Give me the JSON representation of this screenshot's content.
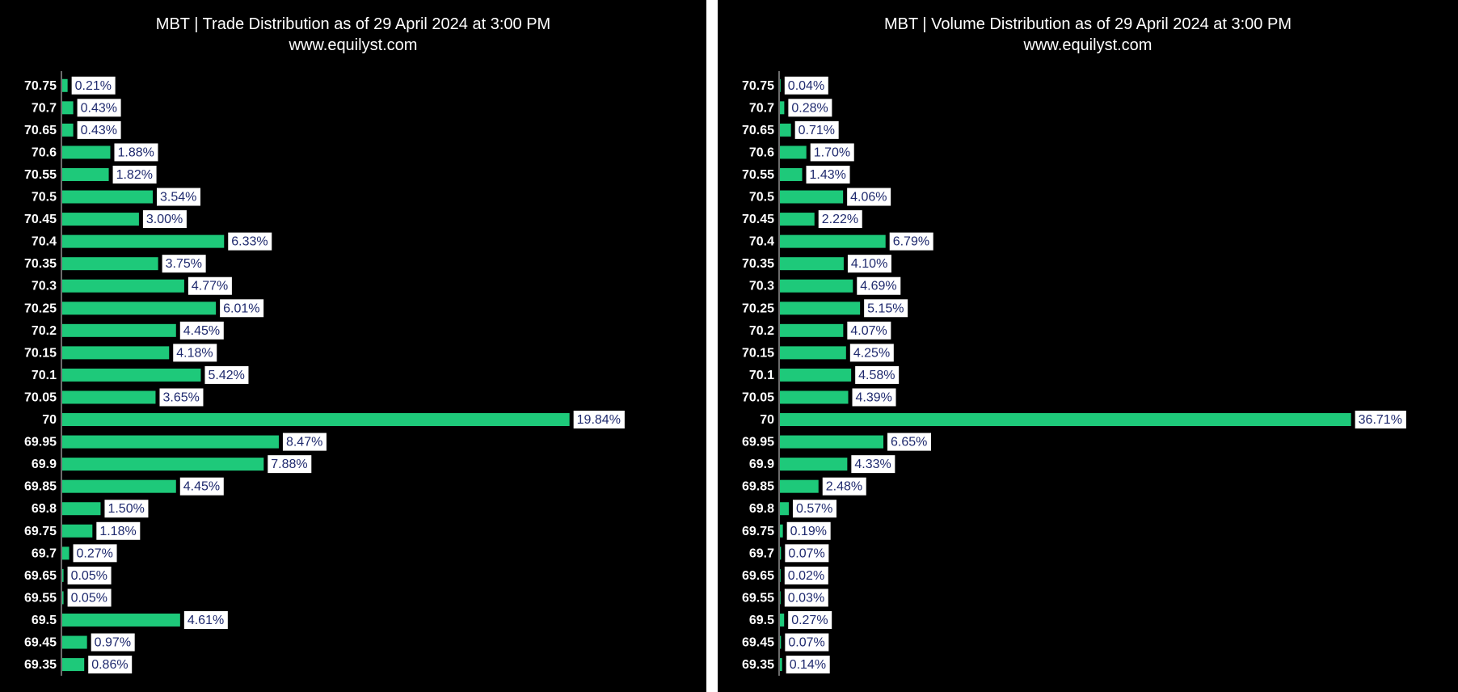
{
  "chart_data": [
    {
      "type": "bar",
      "orientation": "horizontal",
      "title": "MBT | Trade Distribution as of 29 April 2024 at 3:00 PM",
      "subtitle": "www.equilyst.com",
      "categories": [
        "70.75",
        "70.7",
        "70.65",
        "70.6",
        "70.55",
        "70.5",
        "70.45",
        "70.4",
        "70.35",
        "70.3",
        "70.25",
        "70.2",
        "70.15",
        "70.1",
        "70.05",
        "70",
        "69.95",
        "69.9",
        "69.85",
        "69.8",
        "69.75",
        "69.7",
        "69.65",
        "69.55",
        "69.5",
        "69.45",
        "69.35"
      ],
      "values": [
        0.21,
        0.43,
        0.43,
        1.88,
        1.82,
        3.54,
        3.0,
        6.33,
        3.75,
        4.77,
        6.01,
        4.45,
        4.18,
        5.42,
        3.65,
        19.84,
        8.47,
        7.88,
        4.45,
        1.5,
        1.18,
        0.27,
        0.05,
        0.05,
        4.61,
        0.97,
        0.86
      ],
      "value_labels": [
        "0.21%",
        "0.43%",
        "0.43%",
        "1.88%",
        "1.82%",
        "3.54%",
        "3.00%",
        "6.33%",
        "3.75%",
        "4.77%",
        "6.01%",
        "4.45%",
        "4.18%",
        "5.42%",
        "3.65%",
        "19.84%",
        "8.47%",
        "7.88%",
        "4.45%",
        "1.50%",
        "1.18%",
        "0.27%",
        "0.05%",
        "0.05%",
        "4.61%",
        "0.97%",
        "0.86%"
      ],
      "xlim": [
        0,
        22
      ],
      "grid": false,
      "bar_color": "#1ec97a",
      "background": "#000000",
      "label_box_color": "#ffffff",
      "label_text_color": "#1f2a6e"
    },
    {
      "type": "bar",
      "orientation": "horizontal",
      "title": "MBT | Volume Distribution as of 29 April 2024 at 3:00 PM",
      "subtitle": "www.equilyst.com",
      "categories": [
        "70.75",
        "70.7",
        "70.65",
        "70.6",
        "70.55",
        "70.5",
        "70.45",
        "70.4",
        "70.35",
        "70.3",
        "70.25",
        "70.2",
        "70.15",
        "70.1",
        "70.05",
        "70",
        "69.95",
        "69.9",
        "69.85",
        "69.8",
        "69.75",
        "69.7",
        "69.65",
        "69.55",
        "69.5",
        "69.45",
        "69.35"
      ],
      "values": [
        0.04,
        0.28,
        0.71,
        1.7,
        1.43,
        4.06,
        2.22,
        6.79,
        4.1,
        4.69,
        5.15,
        4.07,
        4.25,
        4.58,
        4.39,
        36.71,
        6.65,
        4.33,
        2.48,
        0.57,
        0.19,
        0.07,
        0.02,
        0.03,
        0.27,
        0.07,
        0.14
      ],
      "value_labels": [
        "0.04%",
        "0.28%",
        "0.71%",
        "1.70%",
        "1.43%",
        "4.06%",
        "2.22%",
        "6.79%",
        "4.10%",
        "4.69%",
        "5.15%",
        "4.07%",
        "4.25%",
        "4.58%",
        "4.39%",
        "36.71%",
        "6.65%",
        "4.33%",
        "2.48%",
        "0.57%",
        "0.19%",
        "0.07%",
        "0.02%",
        "0.03%",
        "0.27%",
        "0.07%",
        "0.14%"
      ],
      "xlim": [
        0,
        40
      ],
      "grid": false,
      "bar_color": "#1ec97a",
      "background": "#000000",
      "label_box_color": "#ffffff",
      "label_text_color": "#1f2a6e"
    }
  ]
}
